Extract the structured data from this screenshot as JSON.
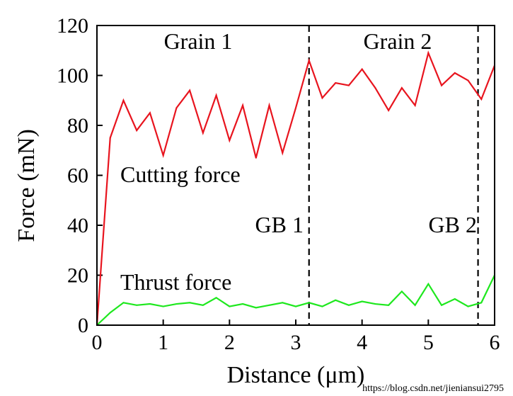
{
  "chart_data": {
    "type": "line",
    "xlabel": "Distance (μm)",
    "ylabel": "Force (mN)",
    "xlim": [
      0,
      6
    ],
    "ylim": [
      0,
      120
    ],
    "xticks": [
      0,
      1,
      2,
      3,
      4,
      5,
      6
    ],
    "yticks": [
      0,
      20,
      40,
      60,
      80,
      100,
      120
    ],
    "grid": false,
    "series": [
      {
        "name": "Cutting force",
        "color": "#e8141e",
        "x": [
          0,
          0.2,
          0.4,
          0.6,
          0.8,
          1.0,
          1.2,
          1.4,
          1.6,
          1.8,
          2.0,
          2.2,
          2.4,
          2.6,
          2.8,
          3.0,
          3.2,
          3.4,
          3.6,
          3.8,
          4.0,
          4.2,
          4.4,
          4.6,
          4.8,
          5.0,
          5.2,
          5.4,
          5.6,
          5.8,
          6.0
        ],
        "values": [
          0,
          75,
          90,
          78,
          85,
          68,
          87,
          94,
          77,
          92,
          74,
          88,
          67,
          88,
          69,
          87,
          106,
          91,
          97,
          96,
          102.5,
          95,
          86,
          95,
          88,
          109,
          96,
          101,
          98,
          90.5,
          104
        ]
      },
      {
        "name": "Thrust force",
        "color": "#1ee81e",
        "x": [
          0,
          0.2,
          0.4,
          0.6,
          0.8,
          1.0,
          1.2,
          1.4,
          1.6,
          1.8,
          2.0,
          2.2,
          2.4,
          2.6,
          2.8,
          3.0,
          3.2,
          3.4,
          3.6,
          3.8,
          4.0,
          4.2,
          4.4,
          4.6,
          4.8,
          5.0,
          5.2,
          5.4,
          5.6,
          5.8,
          6.0
        ],
        "values": [
          0,
          5,
          9,
          8,
          8.5,
          7.5,
          8.5,
          9,
          8,
          11,
          7.5,
          8.5,
          7,
          8,
          9,
          7.5,
          9,
          7.5,
          10,
          8,
          9.5,
          8.5,
          8,
          13.5,
          8,
          16.5,
          8,
          10.5,
          7.5,
          9,
          20
        ]
      }
    ],
    "vlines": [
      {
        "x": 3.2,
        "style": "dashed",
        "label": "GB 1"
      },
      {
        "x": 5.75,
        "style": "dashed",
        "label": "GB 2"
      }
    ],
    "annotations": [
      {
        "text": "Grain 1"
      },
      {
        "text": "Grain 2"
      },
      {
        "text": "Cutting force"
      },
      {
        "text": "Thrust force"
      }
    ]
  },
  "watermark": "https://blog.csdn.net/jieniansui2795"
}
